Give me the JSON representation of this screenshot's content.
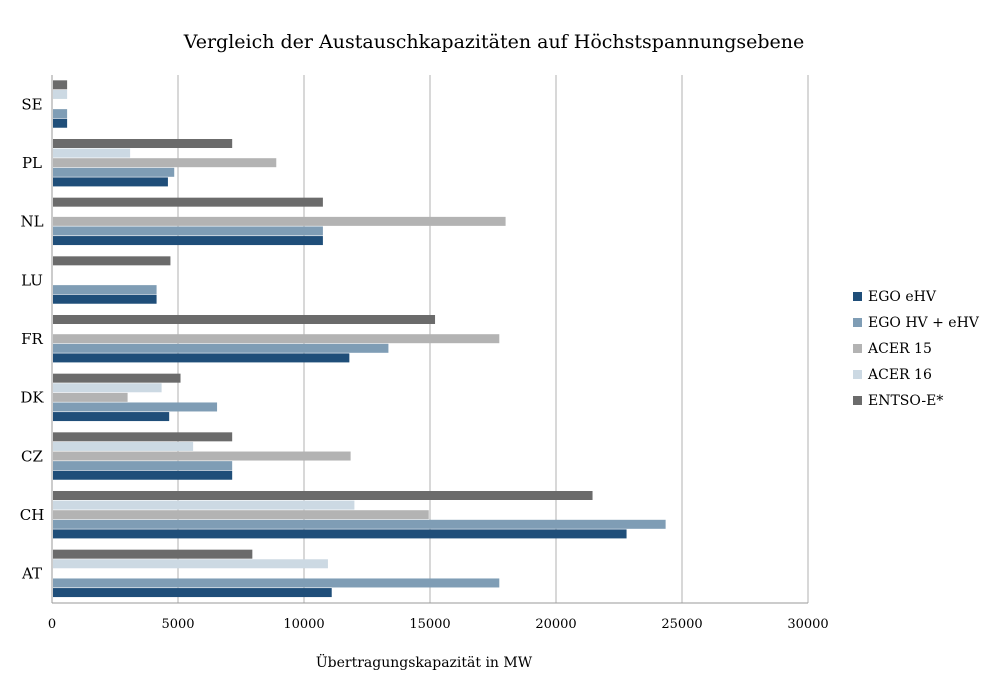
{
  "chart_data": {
    "type": "bar",
    "orientation": "horizontal",
    "title": "Vergleich der Austauschkapazitäten auf Höchstspannungsebene",
    "xlabel": "Übertragungskapazität in MW",
    "ylabel": "",
    "xlim": [
      0,
      30000
    ],
    "xticks": [
      0,
      5000,
      10000,
      15000,
      20000,
      25000,
      30000
    ],
    "grid": "vertical",
    "legend_position": "right",
    "categories": [
      "AT",
      "CH",
      "CZ",
      "DK",
      "FR",
      "LU",
      "NL",
      "PL",
      "SE"
    ],
    "series": [
      {
        "name": "EGO eHV",
        "color": "#1f4e79",
        "values": [
          11100,
          22800,
          7150,
          4650,
          11800,
          4150,
          10750,
          4600,
          600
        ]
      },
      {
        "name": "EGO HV + eHV",
        "color": "#7f9db5",
        "values": [
          17750,
          24350,
          7150,
          6550,
          13350,
          4150,
          10750,
          4850,
          600
        ]
      },
      {
        "name": "ACER 15",
        "color": "#b3b3b3",
        "values": [
          0,
          14950,
          11850,
          3000,
          17750,
          0,
          18000,
          8900,
          0
        ]
      },
      {
        "name": "ACER 16",
        "color": "#ccd9e3",
        "values": [
          10950,
          12000,
          5600,
          4350,
          0,
          0,
          0,
          3100,
          600
        ]
      },
      {
        "name": "ENTSO-E*",
        "color": "#6b6b6b",
        "values": [
          7950,
          21450,
          7150,
          5100,
          15200,
          4700,
          10750,
          7150,
          600
        ]
      }
    ]
  }
}
